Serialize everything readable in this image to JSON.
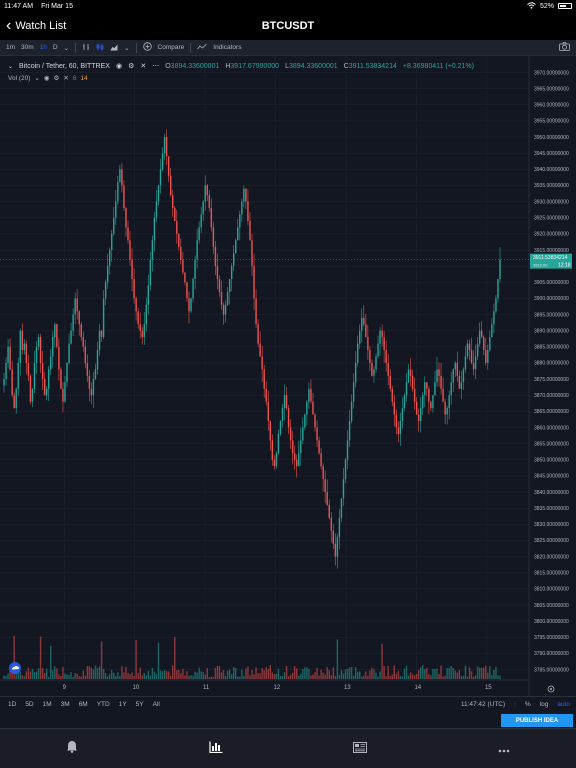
{
  "status": {
    "time": "11:47 AM",
    "date": "Fri Mar 15",
    "battery": "52%"
  },
  "nav": {
    "back_label": "Watch List",
    "title": "BTCUSDT"
  },
  "toolbar": {
    "intervals": [
      "1m",
      "30m",
      "1h",
      "D"
    ],
    "active_interval": "1h",
    "compare": "Compare",
    "indicators": "Indicators"
  },
  "legend": {
    "symbol": "Bitcoin / Tether, 60, BITTREX",
    "o_label": "O",
    "o": "3894.33600001",
    "h_label": "H",
    "h": "3917.67990000",
    "l_label": "L",
    "l": "3894.33600001",
    "c_label": "C",
    "c": "3911.53834214",
    "change": "+8.36980411 (+0.21%)",
    "vol_label": "Vol (20)",
    "vol_a": "6",
    "vol_b": "14"
  },
  "price_tag": {
    "price": "3911.53834214",
    "countdown": "12:18",
    "line2": "3912.00"
  },
  "chart_data": {
    "type": "candlestick",
    "price_ticks": [
      "3970.00000000",
      "3965.00000000",
      "3960.00000000",
      "3955.00000000",
      "3950.00000000",
      "3945.00000000",
      "3940.00000000",
      "3935.00000000",
      "3930.00000000",
      "3925.00000000",
      "3920.00000000",
      "3915.00000000",
      "3910.00000000",
      "3905.00000000",
      "3900.00000000",
      "3895.00000000",
      "3890.00000000",
      "3885.00000000",
      "3880.00000000",
      "3875.00000000",
      "3870.00000000",
      "3865.00000000",
      "3860.00000000",
      "3855.00000000",
      "3850.00000000",
      "3845.00000000",
      "3840.00000000",
      "3835.00000000",
      "3830.00000000",
      "3825.00000000",
      "3820.00000000",
      "3815.00000000",
      "3810.00000000",
      "3805.00000000",
      "3800.00000000",
      "3795.00000000",
      "3790.00000000",
      "3785.00000000"
    ],
    "time_ticks": [
      "9",
      "10",
      "11",
      "12",
      "13",
      "14",
      "15"
    ],
    "ylim": [
      3783,
      3972
    ],
    "closes": [
      3875,
      3880,
      3885,
      3878,
      3870,
      3866,
      3872,
      3880,
      3890,
      3884,
      3886,
      3880,
      3876,
      3868,
      3872,
      3880,
      3885,
      3888,
      3880,
      3875,
      3870,
      3872,
      3878,
      3882,
      3888,
      3892,
      3885,
      3878,
      3872,
      3868,
      3874,
      3880,
      3886,
      3890,
      3895,
      3900,
      3896,
      3892,
      3888,
      3885,
      3880,
      3876,
      3872,
      3870,
      3875,
      3878,
      3884,
      3890,
      3888,
      3900,
      3905,
      3910,
      3915,
      3920,
      3925,
      3930,
      3936,
      3940,
      3935,
      3928,
      3922,
      3918,
      3912,
      3906,
      3900,
      3896,
      3892,
      3890,
      3888,
      3892,
      3898,
      3904,
      3912,
      3918,
      3925,
      3930,
      3935,
      3940,
      3945,
      3950,
      3944,
      3938,
      3932,
      3928,
      3924,
      3920,
      3916,
      3912,
      3908,
      3905,
      3900,
      3896,
      3900,
      3906,
      3912,
      3918,
      3922,
      3926,
      3930,
      3935,
      3932,
      3928,
      3922,
      3916,
      3910,
      3906,
      3902,
      3898,
      3895,
      3898,
      3902,
      3906,
      3910,
      3914,
      3918,
      3922,
      3926,
      3930,
      3934,
      3930,
      3924,
      3918,
      3910,
      3900,
      3892,
      3886,
      3882,
      3878,
      3872,
      3868,
      3862,
      3856,
      3850,
      3848,
      3852,
      3858,
      3862,
      3866,
      3870,
      3866,
      3860,
      3856,
      3852,
      3850,
      3848,
      3852,
      3856,
      3860,
      3864,
      3868,
      3872,
      3868,
      3864,
      3860,
      3856,
      3852,
      3848,
      3844,
      3840,
      3836,
      3832,
      3828,
      3824,
      3820,
      3826,
      3832,
      3838,
      3844,
      3850,
      3856,
      3862,
      3868,
      3874,
      3880,
      3886,
      3890,
      3894,
      3892,
      3888,
      3884,
      3880,
      3876,
      3878,
      3882,
      3886,
      3890,
      3888,
      3884,
      3880,
      3876,
      3872,
      3868,
      3864,
      3860,
      3858,
      3862,
      3866,
      3870,
      3874,
      3878,
      3876,
      3872,
      3868,
      3864,
      3862,
      3866,
      3870,
      3874,
      3872,
      3868,
      3866,
      3870,
      3874,
      3878,
      3876,
      3872,
      3868,
      3864,
      3866,
      3870,
      3874,
      3878,
      3880,
      3876,
      3872,
      3874,
      3878,
      3882,
      3886,
      3884,
      3880,
      3878,
      3882,
      3886,
      3890,
      3888,
      3884,
      3880,
      3884,
      3888,
      3892,
      3896,
      3900,
      3906,
      3912
    ]
  },
  "ranges": [
    "1D",
    "5D",
    "1M",
    "3M",
    "6M",
    "YTD",
    "1Y",
    "5Y",
    "All"
  ],
  "range_time": "11:47:42 (UTC)",
  "range_opts": {
    "pct": "%",
    "log": "log",
    "auto": "auto"
  },
  "publish": "PUBLISH IDEA",
  "colors": {
    "up": "#26a69a",
    "down": "#ef5350",
    "bg": "#131722",
    "grid": "#1f2330",
    "accent": "#2962ff"
  },
  "tabs": [
    "bell-icon",
    "chart-icon",
    "news-icon",
    "more-icon"
  ]
}
